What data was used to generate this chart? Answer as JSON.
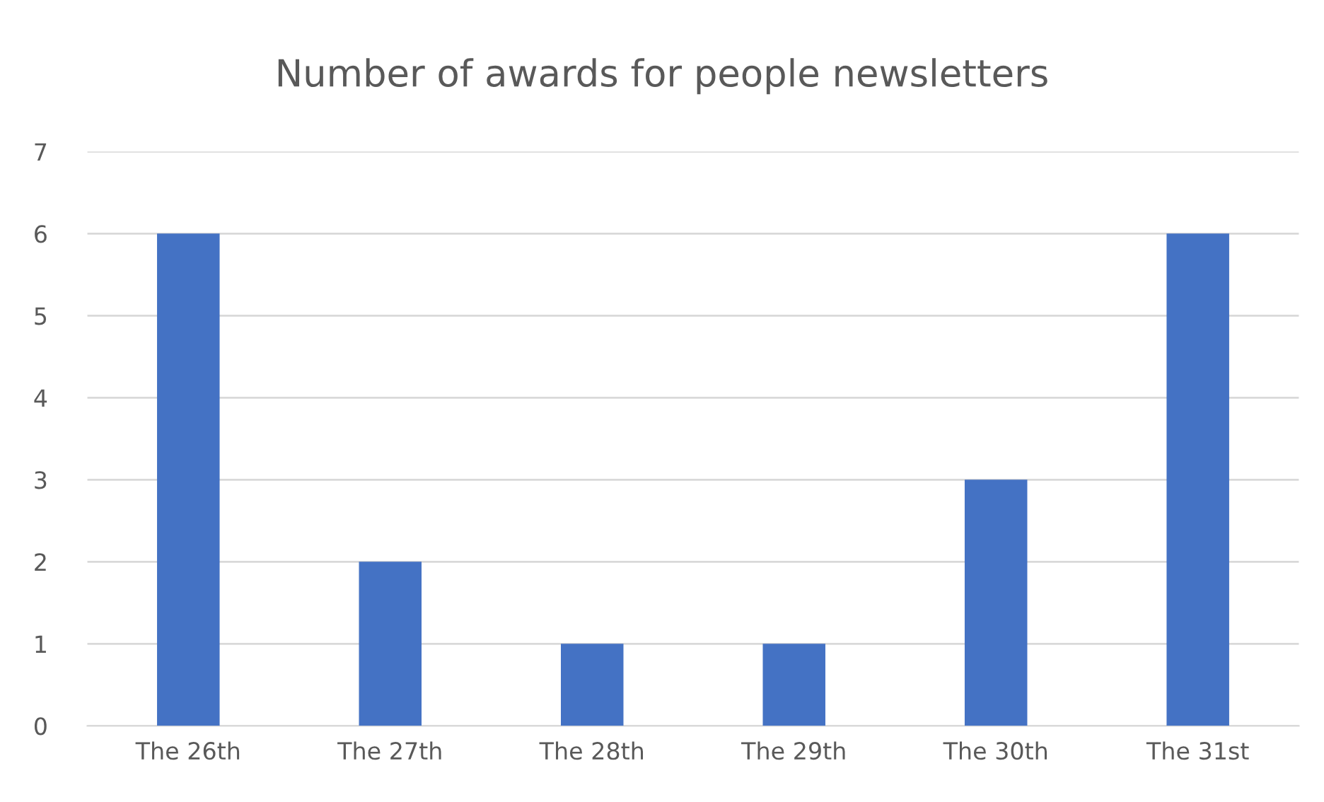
{
  "chart_data": {
    "type": "bar",
    "title": "Number of awards for people newsletters",
    "categories": [
      "The 26th",
      "The 27th",
      "The 28th",
      "The 29th",
      "The 30th",
      "The 31st"
    ],
    "values": [
      6,
      2,
      1,
      1,
      3,
      6
    ],
    "color": "#4472c4",
    "ylim": [
      0,
      7
    ],
    "yticks": [
      0,
      1,
      2,
      3,
      4,
      5,
      6,
      7
    ],
    "grid": "y"
  }
}
